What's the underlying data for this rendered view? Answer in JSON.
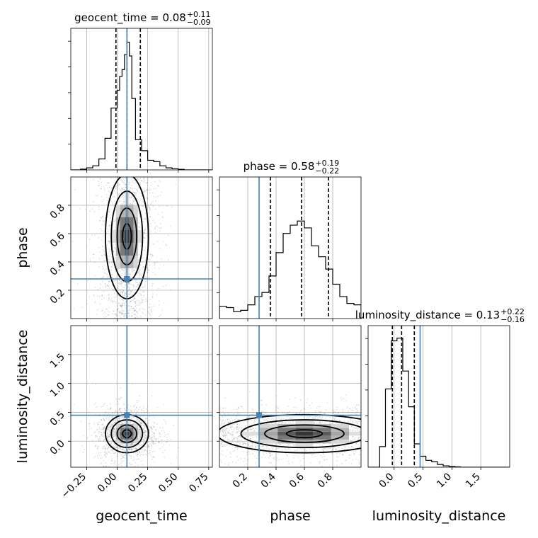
{
  "chart_data": {
    "type": "corner",
    "parameters": [
      "geocent_time",
      "phase",
      "luminosity_distance"
    ],
    "axis_labels": [
      "geocent_time",
      "phase",
      "luminosity_distance"
    ],
    "ranges": {
      "geocent_time": [
        -0.38,
        0.78
      ],
      "phase": [
        0.0,
        1.0
      ],
      "luminosity_distance": [
        -0.45,
        2.0
      ]
    },
    "truths": {
      "geocent_time": 0.08,
      "phase": 0.28,
      "luminosity_distance": 0.45
    },
    "grid": true,
    "titles": [
      {
        "param": "geocent_time",
        "text": "geocent_time = 0.08",
        "upper": "+0.11",
        "lower": "−0.09"
      },
      {
        "param": "phase",
        "text": "phase = 0.58",
        "upper": "+0.19",
        "lower": "−0.22"
      },
      {
        "param": "luminosity_distance",
        "text": "luminosity_distance = 0.13",
        "upper": "+0.22",
        "lower": "−0.16"
      }
    ],
    "ticks": {
      "geocent_time": {
        "values": [
          -0.25,
          0.0,
          0.25,
          0.5,
          0.75
        ],
        "labels": [
          "−0.25",
          "0.00",
          "0.25",
          "0.50",
          "0.75"
        ]
      },
      "phase": {
        "values": [
          0.2,
          0.4,
          0.6,
          0.8
        ],
        "labels": [
          "0.2",
          "0.4",
          "0.6",
          "0.8"
        ]
      },
      "luminosity_distance": {
        "values": [
          0.0,
          0.5,
          1.0,
          1.5
        ],
        "labels": [
          "0.0",
          "0.5",
          "1.0",
          "1.5"
        ]
      }
    },
    "quantiles": {
      "geocent_time": [
        -0.01,
        0.08,
        0.19
      ],
      "phase": [
        0.36,
        0.58,
        0.77
      ],
      "luminosity_distance": [
        -0.03,
        0.13,
        0.35
      ]
    },
    "histograms": {
      "geocent_time": {
        "bins": [
          -0.38,
          -0.3,
          -0.25,
          -0.2,
          -0.15,
          -0.1,
          -0.05,
          0.0,
          0.02,
          0.04,
          0.06,
          0.08,
          0.1,
          0.12,
          0.15,
          0.2,
          0.25,
          0.3,
          0.35,
          0.4,
          0.45,
          0.5,
          0.55,
          0.6,
          0.65,
          0.7,
          0.78
        ],
        "counts": [
          0.0,
          0.005,
          0.015,
          0.03,
          0.08,
          0.23,
          0.45,
          0.58,
          0.68,
          0.73,
          0.84,
          0.93,
          0.83,
          0.52,
          0.22,
          0.14,
          0.07,
          0.06,
          0.03,
          0.015,
          0.008,
          0.004,
          0.0,
          0.0,
          0.0,
          0.0
        ]
      },
      "phase": {
        "bins": [
          0.0,
          0.05,
          0.1,
          0.15,
          0.2,
          0.25,
          0.3,
          0.35,
          0.4,
          0.45,
          0.5,
          0.55,
          0.6,
          0.65,
          0.7,
          0.75,
          0.8,
          0.85,
          0.9,
          0.95,
          1.0
        ],
        "counts": [
          0.09,
          0.08,
          0.05,
          0.06,
          0.1,
          0.16,
          0.19,
          0.31,
          0.48,
          0.62,
          0.68,
          0.71,
          0.66,
          0.53,
          0.45,
          0.36,
          0.25,
          0.16,
          0.11,
          0.1
        ]
      },
      "luminosity_distance": {
        "bins": [
          -0.45,
          -0.25,
          -0.15,
          -0.05,
          0.05,
          0.15,
          0.25,
          0.35,
          0.45,
          0.55,
          0.65,
          0.75,
          0.85,
          0.95,
          1.05,
          1.15,
          1.25,
          1.35,
          1.45,
          2.0
        ],
        "counts": [
          0.0,
          0.15,
          0.57,
          0.92,
          0.94,
          0.7,
          0.44,
          0.17,
          0.08,
          0.05,
          0.04,
          0.02,
          0.01,
          0.005,
          0.003,
          0.0,
          0.0,
          0.0,
          0.0
        ]
      }
    },
    "contour_centers": {
      "phase_vs_geocent_time": {
        "x": 0.08,
        "y": 0.58,
        "sx": 0.08,
        "sy": 0.2
      },
      "luminosity_distance_vs_geocent_time": {
        "x": 0.08,
        "y": 0.13,
        "sx": 0.08,
        "sy": 0.15
      },
      "luminosity_distance_vs_phase": {
        "x": 0.6,
        "y": 0.13,
        "sx": 0.28,
        "sy": 0.15
      }
    }
  },
  "colors": {
    "truth": "#4682b4",
    "hist": "#000000",
    "grid": "#b0b0b0",
    "background": "#ffffff"
  }
}
